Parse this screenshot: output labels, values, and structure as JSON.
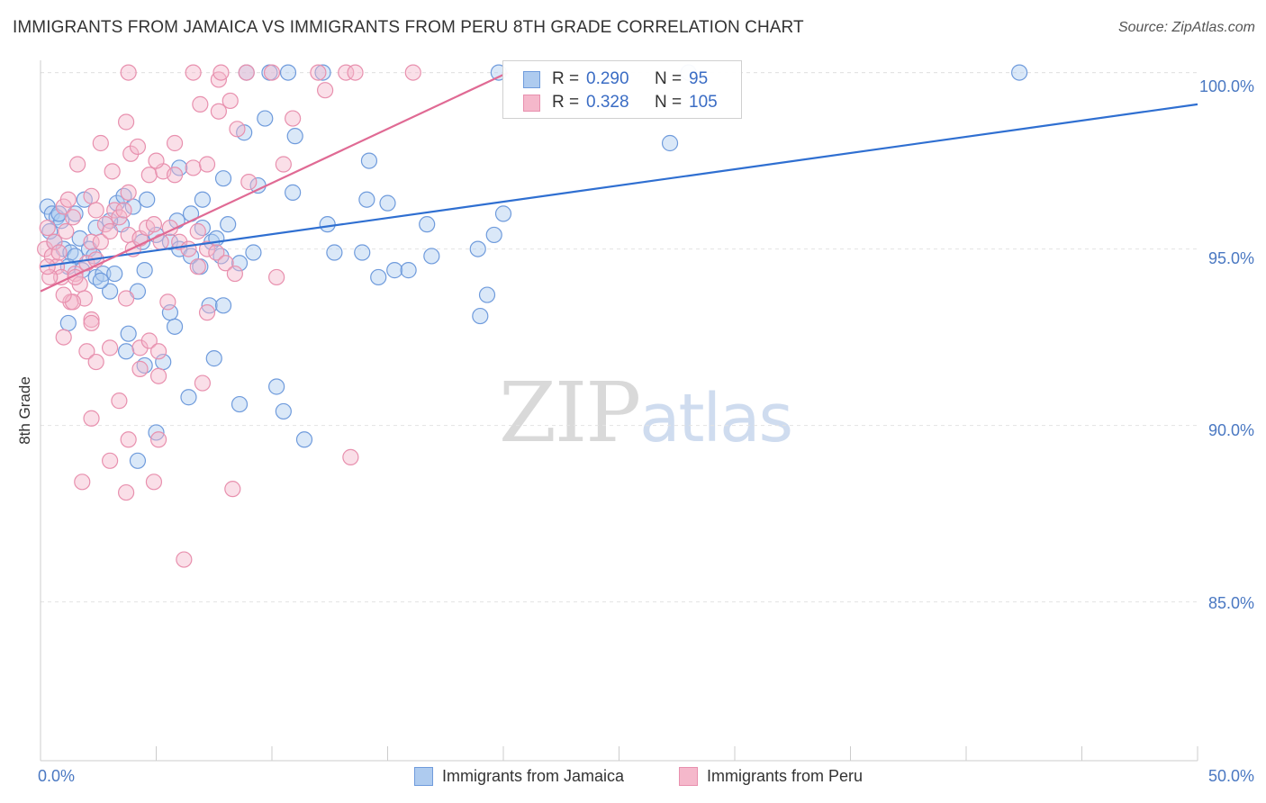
{
  "header": {
    "title": "IMMIGRANTS FROM JAMAICA VS IMMIGRANTS FROM PERU 8TH GRADE CORRELATION CHART",
    "source": "Source: ZipAtlas.com"
  },
  "watermark": {
    "zip": "ZIP",
    "atlas": "atlas"
  },
  "colors": {
    "blue_fill": "#aecbef",
    "blue_stroke": "#6f9bdc",
    "blue_line": "#2f6fd1",
    "pink_fill": "#f5b8cb",
    "pink_stroke": "#e890ae",
    "pink_line": "#e06a94",
    "tick_text": "#4a78c2",
    "grid": "#e3e3e3"
  },
  "legend": {
    "rows": [
      {
        "series": "Immigrants from Jamaica",
        "r_label": "R =",
        "r_value": "0.290",
        "n_label": "N =",
        "n_value": "95"
      },
      {
        "series": "Immigrants from Peru",
        "r_label": "R =",
        "r_value": "0.328",
        "n_label": "N =",
        "n_value": "105"
      }
    ]
  },
  "chart_data": {
    "type": "scatter",
    "title": "IMMIGRANTS FROM JAMAICA VS IMMIGRANTS FROM PERU 8TH GRADE CORRELATION CHART",
    "xlabel": "",
    "ylabel": "8th Grade",
    "xlim": [
      0,
      50
    ],
    "ylim": [
      80.5,
      100.5
    ],
    "x_tick_labels": [
      "0.0%",
      "50.0%"
    ],
    "y_ticks": [
      85,
      90,
      95,
      100
    ],
    "y_tick_labels": [
      "85.0%",
      "90.0%",
      "95.0%",
      "100.0%"
    ],
    "grid": true,
    "legend_position": "top-center",
    "series": [
      {
        "name": "Immigrants from Jamaica",
        "color": "blue",
        "r": 0.29,
        "n": 95,
        "trend": {
          "x": [
            0,
            50
          ],
          "y": [
            94.5,
            99.1
          ]
        },
        "points": [
          [
            0.3,
            96.2
          ],
          [
            0.5,
            96.0
          ],
          [
            0.7,
            95.9
          ],
          [
            0.9,
            95.8
          ],
          [
            0.6,
            95.2
          ],
          [
            1.0,
            95.0
          ],
          [
            1.3,
            94.9
          ],
          [
            1.5,
            94.8
          ],
          [
            1.7,
            95.3
          ],
          [
            2.1,
            95.0
          ],
          [
            1.2,
            94.5
          ],
          [
            1.8,
            94.4
          ],
          [
            2.4,
            94.2
          ],
          [
            2.7,
            94.3
          ],
          [
            3.2,
            94.3
          ],
          [
            2.3,
            94.8
          ],
          [
            3.0,
            93.8
          ],
          [
            4.2,
            93.8
          ],
          [
            4.5,
            94.4
          ],
          [
            4.4,
            95.2
          ],
          [
            3.5,
            95.7
          ],
          [
            3.3,
            96.3
          ],
          [
            2.4,
            95.6
          ],
          [
            1.9,
            96.4
          ],
          [
            5.0,
            95.4
          ],
          [
            5.6,
            95.2
          ],
          [
            6.0,
            95.0
          ],
          [
            6.5,
            94.8
          ],
          [
            7.4,
            95.2
          ],
          [
            7.6,
            95.3
          ],
          [
            7.8,
            94.8
          ],
          [
            7.0,
            95.6
          ],
          [
            5.9,
            95.8
          ],
          [
            6.5,
            96.0
          ],
          [
            4.6,
            96.4
          ],
          [
            3.6,
            96.5
          ],
          [
            4.0,
            96.2
          ],
          [
            7.0,
            96.4
          ],
          [
            8.1,
            95.7
          ],
          [
            8.6,
            94.6
          ],
          [
            9.2,
            94.9
          ],
          [
            9.4,
            96.8
          ],
          [
            7.9,
            97.0
          ],
          [
            6.0,
            97.3
          ],
          [
            8.8,
            98.3
          ],
          [
            9.7,
            98.7
          ],
          [
            11.0,
            98.2
          ],
          [
            10.9,
            96.6
          ],
          [
            12.4,
            95.7
          ],
          [
            12.7,
            94.9
          ],
          [
            13.9,
            94.9
          ],
          [
            14.1,
            96.4
          ],
          [
            14.2,
            97.5
          ],
          [
            15.0,
            96.3
          ],
          [
            15.3,
            94.4
          ],
          [
            14.6,
            94.2
          ],
          [
            15.9,
            94.4
          ],
          [
            16.9,
            94.8
          ],
          [
            16.7,
            95.7
          ],
          [
            19.0,
            93.1
          ],
          [
            18.9,
            95.0
          ],
          [
            19.3,
            93.7
          ],
          [
            19.6,
            95.4
          ],
          [
            20.0,
            96.0
          ],
          [
            7.3,
            93.4
          ],
          [
            7.9,
            93.4
          ],
          [
            6.9,
            94.5
          ],
          [
            5.6,
            93.2
          ],
          [
            5.8,
            92.8
          ],
          [
            3.8,
            92.6
          ],
          [
            3.7,
            92.1
          ],
          [
            4.5,
            91.7
          ],
          [
            5.3,
            91.8
          ],
          [
            7.5,
            91.9
          ],
          [
            10.2,
            91.1
          ],
          [
            10.5,
            90.4
          ],
          [
            8.6,
            90.6
          ],
          [
            6.4,
            90.8
          ],
          [
            5.0,
            89.8
          ],
          [
            11.4,
            89.6
          ],
          [
            4.2,
            89.0
          ],
          [
            8.9,
            100.0
          ],
          [
            9.9,
            100.0
          ],
          [
            10.7,
            100.0
          ],
          [
            12.2,
            100.0
          ],
          [
            19.8,
            100.0
          ],
          [
            28.0,
            100.0
          ],
          [
            42.3,
            100.0
          ],
          [
            27.2,
            98.0
          ],
          [
            1.2,
            92.9
          ],
          [
            0.8,
            96.0
          ],
          [
            1.5,
            96.0
          ],
          [
            3.0,
            95.8
          ],
          [
            2.6,
            94.1
          ],
          [
            0.4,
            95.5
          ]
        ]
      },
      {
        "name": "Immigrants from Peru",
        "color": "pink",
        "r": 0.328,
        "n": 105,
        "trend": {
          "x": [
            0,
            20.2
          ],
          "y": [
            93.8,
            100.0
          ]
        },
        "points": [
          [
            0.2,
            95.0
          ],
          [
            0.3,
            95.6
          ],
          [
            0.5,
            94.8
          ],
          [
            0.7,
            94.5
          ],
          [
            0.9,
            94.2
          ],
          [
            0.4,
            94.2
          ],
          [
            0.6,
            95.2
          ],
          [
            0.8,
            94.9
          ],
          [
            1.0,
            96.2
          ],
          [
            1.1,
            95.5
          ],
          [
            1.2,
            96.4
          ],
          [
            1.4,
            95.9
          ],
          [
            1.5,
            94.3
          ],
          [
            1.7,
            94.0
          ],
          [
            1.9,
            93.6
          ],
          [
            1.3,
            93.5
          ],
          [
            2.0,
            94.6
          ],
          [
            2.2,
            95.2
          ],
          [
            2.4,
            94.7
          ],
          [
            2.6,
            95.2
          ],
          [
            2.8,
            95.7
          ],
          [
            3.0,
            95.5
          ],
          [
            3.2,
            96.1
          ],
          [
            3.4,
            95.9
          ],
          [
            3.6,
            96.1
          ],
          [
            3.8,
            95.4
          ],
          [
            4.0,
            95.0
          ],
          [
            4.3,
            95.3
          ],
          [
            4.6,
            95.6
          ],
          [
            4.9,
            95.7
          ],
          [
            5.2,
            95.2
          ],
          [
            5.6,
            95.6
          ],
          [
            6.0,
            95.2
          ],
          [
            6.4,
            95.0
          ],
          [
            6.8,
            94.5
          ],
          [
            7.2,
            95.0
          ],
          [
            7.6,
            94.9
          ],
          [
            8.0,
            94.6
          ],
          [
            8.4,
            94.3
          ],
          [
            10.2,
            94.2
          ],
          [
            6.8,
            95.5
          ],
          [
            3.8,
            96.6
          ],
          [
            2.2,
            96.5
          ],
          [
            1.6,
            97.4
          ],
          [
            3.9,
            97.7
          ],
          [
            4.7,
            97.1
          ],
          [
            5.3,
            97.2
          ],
          [
            5.8,
            97.1
          ],
          [
            6.6,
            97.3
          ],
          [
            7.2,
            97.4
          ],
          [
            9.0,
            96.9
          ],
          [
            10.5,
            97.4
          ],
          [
            10.9,
            98.7
          ],
          [
            8.5,
            98.4
          ],
          [
            7.7,
            98.9
          ],
          [
            8.2,
            99.2
          ],
          [
            6.9,
            99.1
          ],
          [
            7.7,
            99.8
          ],
          [
            6.6,
            100.0
          ],
          [
            7.8,
            100.0
          ],
          [
            10.0,
            100.0
          ],
          [
            12.0,
            100.0
          ],
          [
            13.2,
            100.0
          ],
          [
            12.3,
            99.5
          ],
          [
            13.6,
            100.0
          ],
          [
            16.1,
            100.0
          ],
          [
            8.9,
            100.0
          ],
          [
            3.8,
            100.0
          ],
          [
            3.7,
            98.6
          ],
          [
            2.6,
            98.0
          ],
          [
            4.2,
            97.9
          ],
          [
            5.0,
            97.5
          ],
          [
            5.8,
            98.0
          ],
          [
            3.1,
            97.2
          ],
          [
            2.4,
            96.1
          ],
          [
            1.0,
            92.5
          ],
          [
            2.0,
            92.1
          ],
          [
            3.0,
            92.2
          ],
          [
            4.3,
            92.2
          ],
          [
            4.7,
            92.4
          ],
          [
            5.1,
            92.1
          ],
          [
            2.4,
            91.8
          ],
          [
            4.3,
            91.6
          ],
          [
            5.1,
            91.4
          ],
          [
            7.0,
            91.2
          ],
          [
            3.4,
            90.7
          ],
          [
            2.2,
            90.2
          ],
          [
            3.8,
            89.6
          ],
          [
            5.1,
            89.6
          ],
          [
            3.0,
            89.0
          ],
          [
            1.8,
            88.4
          ],
          [
            3.7,
            88.1
          ],
          [
            4.9,
            88.4
          ],
          [
            8.3,
            88.2
          ],
          [
            6.2,
            86.2
          ],
          [
            13.4,
            89.1
          ],
          [
            1.4,
            93.5
          ],
          [
            2.2,
            93.0
          ],
          [
            3.7,
            93.6
          ],
          [
            5.5,
            93.5
          ],
          [
            7.2,
            93.2
          ],
          [
            1.0,
            93.7
          ],
          [
            2.2,
            92.9
          ],
          [
            1.5,
            94.2
          ],
          [
            0.3,
            94.5
          ]
        ]
      }
    ]
  }
}
